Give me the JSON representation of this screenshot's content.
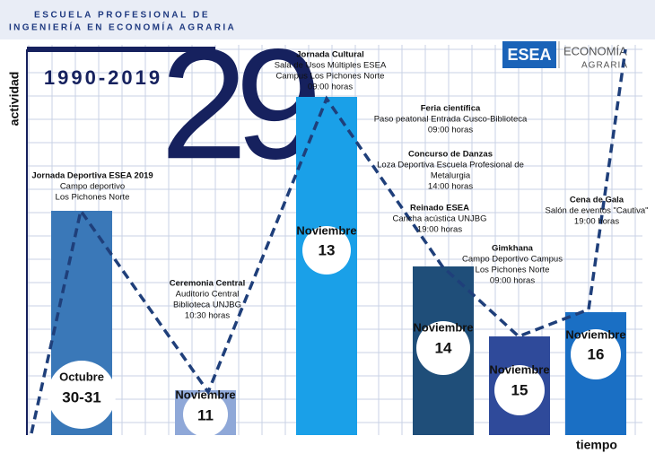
{
  "header": {
    "line1": "ESCUELA PROFESIONAL DE",
    "line2": "INGENIERÍA EN ECONOMÍA AGRARIA",
    "years": "1990-2019",
    "big_number": "29"
  },
  "logo": {
    "acronym": "ESEA",
    "name_line1": "ECONOMÍA",
    "name_line2": "AGRARIA"
  },
  "axes": {
    "y": "actividad",
    "x": "tiempo"
  },
  "dates": [
    {
      "month": "Octubre",
      "day": "30-31"
    },
    {
      "month": "Noviembre",
      "day": "11"
    },
    {
      "month": "Noviembre",
      "day": "13"
    },
    {
      "month": "Noviembre",
      "day": "14"
    },
    {
      "month": "Noviembre",
      "day": "15"
    },
    {
      "month": "Noviembre",
      "day": "16"
    }
  ],
  "events": [
    {
      "title": "Jornada Deportiva ESEA 2019",
      "lines": [
        "Campo deportivo",
        "Los Pichones Norte"
      ]
    },
    {
      "title": "Ceremonia Central",
      "lines": [
        "Auditorio Central",
        "Biblioteca UNJBG",
        "10:30 horas"
      ]
    },
    {
      "title": "Jornada Cultural",
      "lines": [
        "Sala de Usos Múltiples ESEA",
        "Campus Los Pichones Norte",
        "09:00 horas"
      ]
    },
    {
      "title": "Feria científica",
      "lines": [
        "Paso peatonal Entrada Cusco-Biblioteca",
        "09:00 horas"
      ]
    },
    {
      "title": "Concurso de Danzas",
      "lines": [
        "Loza Deportiva Escuela Profesional de",
        "Metalurgia",
        "14:00 horas"
      ]
    },
    {
      "title": "Reinado ESEA",
      "lines": [
        "Cancha acústica UNJBG",
        "19:00 horas"
      ]
    },
    {
      "title": "Gimkhana",
      "lines": [
        "Campo Deportivo Campus",
        "Los Pichones Norte",
        "09:00 horas"
      ]
    },
    {
      "title": "Cena de Gala",
      "lines": [
        "Salón de eventos \"Cautiva\"",
        "19:00 horas"
      ]
    }
  ]
}
